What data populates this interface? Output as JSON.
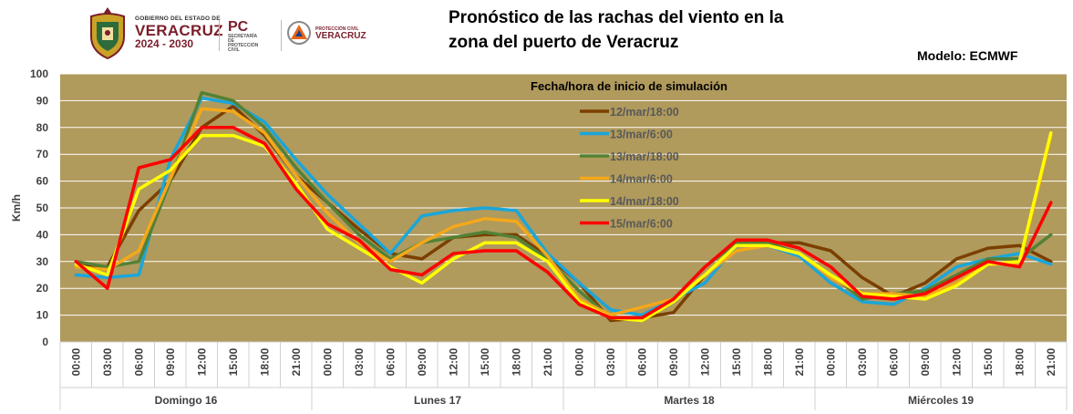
{
  "header": {
    "gov_small": "GOBIERNO DEL ESTADO DE",
    "gov_state": "VERACRUZ",
    "gov_years": "2024 - 2030",
    "pc_abbr": "PC",
    "pc_line1": "SECRETARÍA DE",
    "pc_line2": "PROTECCIÓN CIVIL",
    "pcv_line": "PROTECCIÓN CIVIL",
    "pcv_state": "VERACRUZ"
  },
  "title_line1": "Pronóstico de las rachas del viento en la",
  "title_line2": "zona del puerto de Veracruz",
  "model_label": "Modelo: ECMWF",
  "chart_data": {
    "type": "line",
    "title": "Pronóstico de las rachas del viento en la zona del puerto de Veracruz",
    "ylabel": "Km/h",
    "ylim": [
      0,
      100
    ],
    "yticks": [
      0,
      10,
      20,
      30,
      40,
      50,
      60,
      70,
      80,
      90,
      100
    ],
    "grid": true,
    "legend_title": "Fecha/hora de inicio de simulación",
    "legend_position": "top-center",
    "plot_background": "#b09a5c",
    "x": [
      "00:00",
      "03:00",
      "06:00",
      "09:00",
      "12:00",
      "15:00",
      "18:00",
      "21:00",
      "00:00",
      "03:00",
      "06:00",
      "09:00",
      "12:00",
      "15:00",
      "18:00",
      "21:00",
      "00:00",
      "03:00",
      "06:00",
      "09:00",
      "12:00",
      "15:00",
      "18:00",
      "21:00",
      "00:00",
      "03:00",
      "06:00",
      "09:00",
      "12:00",
      "15:00",
      "18:00",
      "21:00"
    ],
    "day_groups": [
      "Domingo 16",
      "Lunes 17",
      "Martes 18",
      "Miércoles 19"
    ],
    "series": [
      {
        "name": "12/mar/18:00",
        "color": "#7b3f00",
        "values": [
          29,
          28,
          49,
          60,
          80,
          88,
          77,
          62,
          52,
          42,
          33,
          31,
          39,
          40,
          40,
          32,
          22,
          8,
          9,
          11,
          25,
          36,
          37,
          37,
          34,
          24,
          17,
          22,
          31,
          35,
          36,
          30
        ]
      },
      {
        "name": "13/mar/6:00",
        "color": "#1ba6d9",
        "values": [
          25,
          24,
          25,
          68,
          91,
          89,
          82,
          68,
          55,
          44,
          33,
          47,
          49,
          50,
          49,
          33,
          22,
          12,
          10,
          16,
          22,
          36,
          36,
          32,
          22,
          15,
          14,
          20,
          28,
          31,
          33,
          29
        ]
      },
      {
        "name": "13/mar/18:00",
        "color": "#538135",
        "values": [
          30,
          28,
          30,
          60,
          93,
          90,
          80,
          65,
          52,
          40,
          31,
          37,
          39,
          41,
          39,
          31,
          19,
          9,
          9,
          16,
          28,
          37,
          37,
          33,
          25,
          16,
          18,
          19,
          25,
          31,
          31,
          40
        ]
      },
      {
        "name": "14/mar/6:00",
        "color": "#f4a81a",
        "values": [
          28,
          27,
          34,
          61,
          87,
          86,
          78,
          62,
          48,
          37,
          30,
          37,
          43,
          46,
          45,
          32,
          16,
          10,
          13,
          16,
          25,
          34,
          36,
          33,
          24,
          18,
          18,
          17,
          22,
          29,
          29,
          77
        ]
      },
      {
        "name": "14/mar/18:00",
        "color": "#ffff00",
        "values": [
          29,
          25,
          57,
          64,
          77,
          77,
          73,
          59,
          42,
          35,
          28,
          22,
          31,
          37,
          37,
          30,
          15,
          9,
          8,
          15,
          25,
          36,
          36,
          33,
          25,
          18,
          17,
          16,
          21,
          29,
          30,
          78
        ]
      },
      {
        "name": "15/mar/6:00",
        "color": "#ff0000",
        "values": [
          30,
          20,
          65,
          68,
          80,
          80,
          74,
          57,
          44,
          38,
          27,
          25,
          33,
          34,
          34,
          26,
          14,
          9,
          9,
          16,
          28,
          38,
          38,
          35,
          28,
          17,
          16,
          18,
          24,
          30,
          28,
          52
        ]
      }
    ]
  }
}
